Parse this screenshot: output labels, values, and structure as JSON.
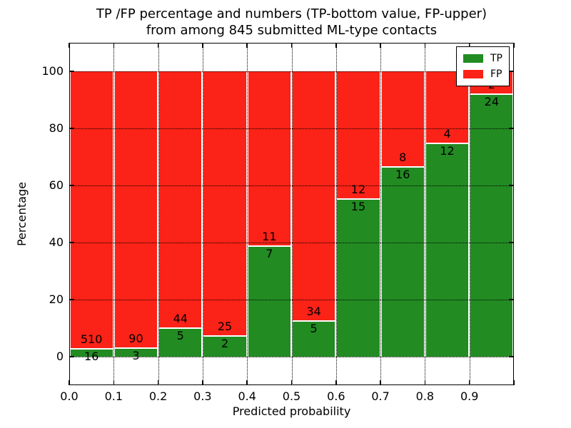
{
  "figure": {
    "title_line1": "TP /FP percentage and numbers (TP-bottom value, FP-upper)",
    "title_line2": "from among 845 submitted ML-type contacts"
  },
  "colors": {
    "tp_green": "#228B22",
    "fp_red": "#FB2217",
    "grid": "#000000",
    "frame": "#000000",
    "background": "#FFFFFF"
  },
  "chart_data": {
    "type": "bar",
    "stacked": true,
    "normalized_to_100_percent": true,
    "title": "TP /FP percentage and numbers (TP-bottom value, FP-upper) from among 845 submitted ML-type contacts",
    "xlabel": "Predicted probability",
    "ylabel": "Percentage",
    "xlim": [
      0.0,
      1.0
    ],
    "ylim": [
      -10,
      110
    ],
    "bin_width": 0.1,
    "bin_starts": [
      0.0,
      0.1,
      0.2,
      0.3,
      0.4,
      0.5,
      0.6,
      0.7,
      0.8,
      0.9
    ],
    "x_tick_labels": [
      "0.0",
      "0.1",
      "0.2",
      "0.3",
      "0.4",
      "0.5",
      "0.6",
      "0.7",
      "0.8",
      "0.9"
    ],
    "y_tick_values": [
      0,
      20,
      40,
      60,
      80,
      100
    ],
    "y_tick_labels": [
      "0",
      "20",
      "40",
      "60",
      "80",
      "100"
    ],
    "grid_style": "dotted",
    "legend_position": "upper right",
    "total_contacts": 845,
    "series": [
      {
        "name": "TP",
        "color": "#228B22",
        "counts": [
          16,
          3,
          5,
          2,
          7,
          5,
          15,
          16,
          12,
          24
        ]
      },
      {
        "name": "FP",
        "color": "#FB2217",
        "counts": [
          510,
          90,
          44,
          25,
          11,
          34,
          12,
          8,
          4,
          2
        ]
      }
    ],
    "tp_percent_by_bin": [
      3.0,
      3.2,
      10.2,
      7.4,
      38.9,
      12.8,
      55.6,
      66.7,
      75.0,
      92.3
    ]
  }
}
